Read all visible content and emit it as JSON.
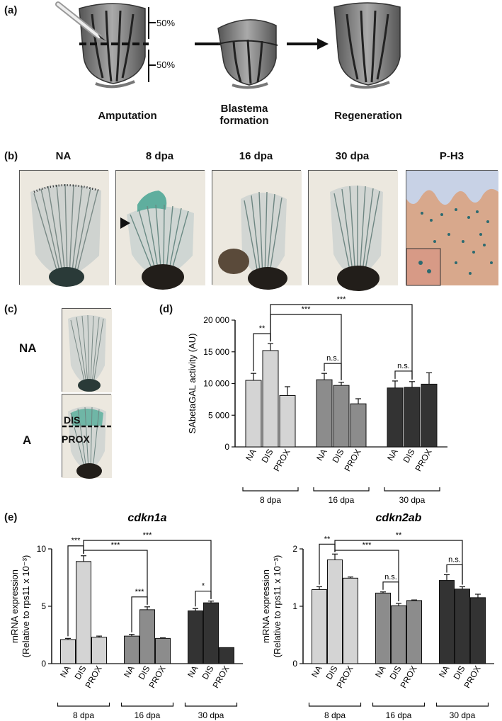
{
  "panel_a": {
    "label": "(a)",
    "pct_top": "50%",
    "pct_bottom": "50%",
    "steps": [
      "Amputation",
      "Blastema formation",
      "Regeneration"
    ]
  },
  "panel_b": {
    "label": "(b)",
    "headers": [
      "NA",
      "8 dpa",
      "16 dpa",
      "30 dpa",
      "P-H3"
    ]
  },
  "panel_c": {
    "label": "(c)",
    "na_label": "NA",
    "a_label": "A",
    "dis_label": "DIS",
    "prox_label": "PROX"
  },
  "panel_e": {
    "label": "(e)"
  },
  "chart_data": [
    {
      "panel": "(d)",
      "type": "bar",
      "ylabel": "SAbetaGAL activity (AU)",
      "ylim": [
        0,
        20000
      ],
      "yticks": [
        "0",
        "5 000",
        "10 000",
        "15 000",
        "20 000"
      ],
      "categories": [
        "NA",
        "DIS",
        "PROX",
        "NA",
        "DIS",
        "PROX",
        "NA",
        "DIS",
        "PROX"
      ],
      "groups": [
        "8 dpa",
        "16 dpa",
        "30 dpa"
      ],
      "values": [
        10500,
        15200,
        8100,
        10600,
        9700,
        6800,
        9300,
        9400,
        9900
      ],
      "errors": [
        1100,
        1100,
        1400,
        1000,
        500,
        800,
        1100,
        900,
        1800
      ],
      "group_colors": [
        "#d4d4d4",
        "#8c8c8c",
        "#333333"
      ],
      "significance": [
        {
          "from": 0,
          "to": 1,
          "label": "**"
        },
        {
          "from": 1,
          "to": 4,
          "label": "***"
        },
        {
          "from": 1,
          "to": 7,
          "label": "***"
        },
        {
          "from": 3,
          "to": 4,
          "label": "n.s."
        },
        {
          "from": 6,
          "to": 7,
          "label": "n.s."
        }
      ]
    },
    {
      "panel": "(e)",
      "type": "bar",
      "title": "cdkn1a",
      "ylabel_line1": "mRNA expression",
      "ylabel_line2": "(Relative to rps11 x 10⁻³)",
      "ylim": [
        0,
        10
      ],
      "yticks": [
        "0",
        "5",
        "10"
      ],
      "categories": [
        "NA",
        "DIS",
        "PROX",
        "NA",
        "DIS",
        "PROX",
        "NA",
        "DIS",
        "PROX"
      ],
      "groups": [
        "8 dpa",
        "16 dpa",
        "30 dpa"
      ],
      "values": [
        2.1,
        8.9,
        2.3,
        2.4,
        4.7,
        2.2,
        4.6,
        5.3,
        1.4
      ],
      "errors": [
        0.1,
        0.5,
        0.1,
        0.15,
        0.25,
        0.05,
        0.2,
        0.15,
        0
      ],
      "group_colors": [
        "#d4d4d4",
        "#8c8c8c",
        "#333333"
      ],
      "significance": [
        {
          "from": 0,
          "to": 1,
          "label": "***"
        },
        {
          "from": 1,
          "to": 4,
          "label": "***"
        },
        {
          "from": 1,
          "to": 7,
          "label": "***"
        },
        {
          "from": 3,
          "to": 4,
          "label": "***"
        },
        {
          "from": 6,
          "to": 7,
          "label": "*"
        }
      ]
    },
    {
      "panel": "(e)",
      "type": "bar",
      "title": "cdkn2ab",
      "ylabel_line1": "mRNA expression",
      "ylabel_line2": "(Relative to rps11 x 10⁻³)",
      "ylim": [
        0,
        2
      ],
      "yticks": [
        "0",
        "1",
        "2"
      ],
      "categories": [
        "NA",
        "DIS",
        "PROX",
        "NA",
        "DIS",
        "PROX",
        "NA",
        "DIS",
        "PROX"
      ],
      "groups": [
        "8 dpa",
        "16 dpa",
        "30 dpa"
      ],
      "values": [
        1.29,
        1.81,
        1.49,
        1.23,
        1.01,
        1.1,
        1.45,
        1.3,
        1.15
      ],
      "errors": [
        0.05,
        0.1,
        0.02,
        0.02,
        0.04,
        0.01,
        0.1,
        0.04,
        0.06
      ],
      "group_colors": [
        "#d4d4d4",
        "#8c8c8c",
        "#333333"
      ],
      "significance": [
        {
          "from": 0,
          "to": 1,
          "label": "**"
        },
        {
          "from": 1,
          "to": 4,
          "label": "***"
        },
        {
          "from": 1,
          "to": 7,
          "label": "**"
        },
        {
          "from": 3,
          "to": 4,
          "label": "n.s."
        },
        {
          "from": 6,
          "to": 7,
          "label": "n.s."
        }
      ]
    }
  ]
}
